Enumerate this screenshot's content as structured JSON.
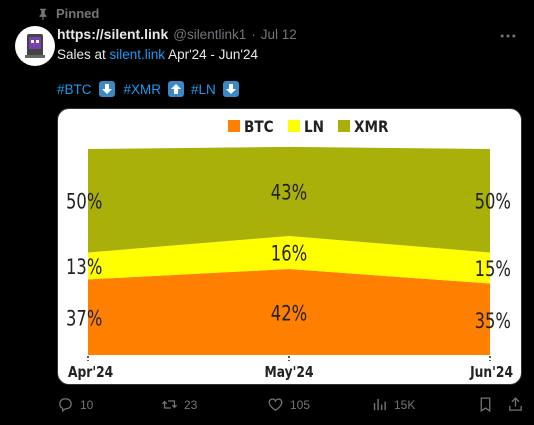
{
  "pinned_label": "Pinned",
  "author": {
    "display_name": "https://silent.link",
    "handle": "@silentlink1",
    "separator": "·",
    "date": "Jul 12"
  },
  "post": {
    "text_prefix": "Sales at ",
    "link_text": "silent.link",
    "text_suffix": " Apr'24 - Jun'24",
    "tags": [
      "#BTC",
      "#XMR",
      "#LN"
    ],
    "tag_arrows": [
      "down",
      "up",
      "down"
    ]
  },
  "colors": {
    "accent": "#1d9bf0",
    "btc": "#ff7f00",
    "ln": "#ffff00",
    "xmr": "#a9b00a"
  },
  "chart_data": {
    "type": "area",
    "stacked": true,
    "categories": [
      "Apr'24",
      "May'24",
      "Jun'24"
    ],
    "series": [
      {
        "name": "BTC",
        "values": [
          37,
          42,
          35
        ],
        "labels": [
          "37%",
          "42%",
          "35%"
        ],
        "color": "#ff7f00"
      },
      {
        "name": "LN",
        "values": [
          13,
          16,
          15
        ],
        "labels": [
          "13%",
          "16%",
          "15%"
        ],
        "color": "#ffff00"
      },
      {
        "name": "XMR",
        "values": [
          50,
          43,
          50
        ],
        "labels": [
          "50%",
          "43%",
          "50%"
        ],
        "color": "#a9b00a"
      }
    ],
    "ylim": [
      0,
      100
    ],
    "legend_position": "top-center"
  },
  "actions": {
    "replies": "10",
    "reposts": "23",
    "likes": "105",
    "views": "15K"
  },
  "icons": {
    "pin": "pin-icon",
    "more": "more-icon",
    "reply": "reply-icon",
    "repost": "repost-icon",
    "like": "heart-icon",
    "views": "views-icon",
    "bookmark": "bookmark-icon",
    "share": "share-icon"
  }
}
